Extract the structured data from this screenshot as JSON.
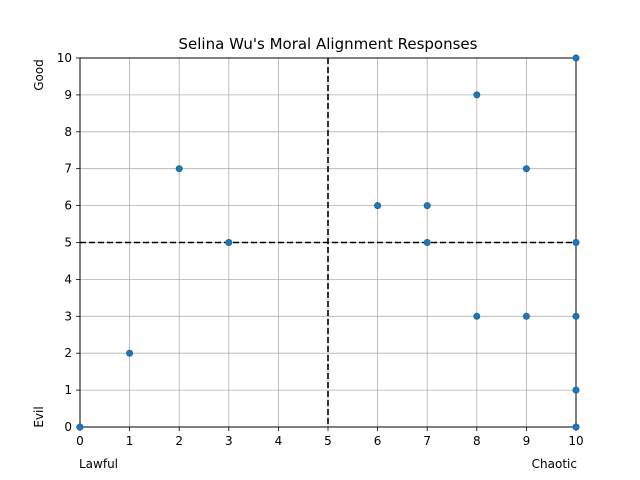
{
  "chart_data": {
    "type": "scatter",
    "title": "Selina Wu's Moral Alignment Responses",
    "xlabel": "",
    "ylabel": "",
    "corner_labels": {
      "x_low": "Lawful",
      "x_high": "Chaotic",
      "y_low": "Evil",
      "y_high": "Good"
    },
    "xlim": [
      0,
      10
    ],
    "ylim": [
      0,
      10
    ],
    "xticks": [
      0,
      1,
      2,
      3,
      4,
      5,
      6,
      7,
      8,
      9,
      10
    ],
    "yticks": [
      0,
      1,
      2,
      3,
      4,
      5,
      6,
      7,
      8,
      9,
      10
    ],
    "grid": true,
    "reference_lines": {
      "x": 5,
      "y": 5,
      "style": "dashed",
      "color": "#000000"
    },
    "marker_color": "#1f77b4",
    "points": [
      {
        "x": 0,
        "y": 0
      },
      {
        "x": 1,
        "y": 2
      },
      {
        "x": 2,
        "y": 7
      },
      {
        "x": 3,
        "y": 5
      },
      {
        "x": 6,
        "y": 6
      },
      {
        "x": 7,
        "y": 6
      },
      {
        "x": 7,
        "y": 5
      },
      {
        "x": 8,
        "y": 9
      },
      {
        "x": 8,
        "y": 3
      },
      {
        "x": 9,
        "y": 7
      },
      {
        "x": 9,
        "y": 3
      },
      {
        "x": 10,
        "y": 10
      },
      {
        "x": 10,
        "y": 5
      },
      {
        "x": 10,
        "y": 3
      },
      {
        "x": 10,
        "y": 1
      },
      {
        "x": 10,
        "y": 0
      }
    ]
  }
}
